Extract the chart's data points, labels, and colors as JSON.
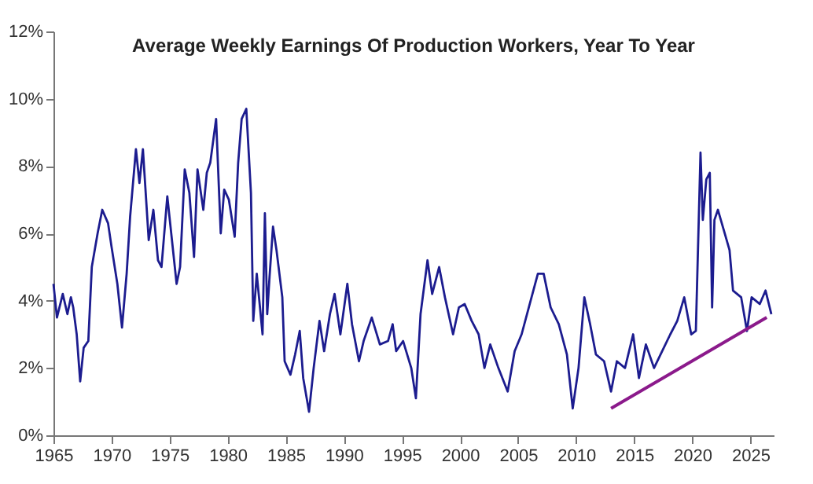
{
  "chart_data": {
    "type": "line",
    "title": "Average Weekly Earnings Of Production Workers, Year To Year",
    "xlim": [
      1965,
      2027
    ],
    "xticks": [
      1965,
      1970,
      1975,
      1980,
      1985,
      1990,
      1995,
      2000,
      2005,
      2010,
      2015,
      2020,
      2025
    ],
    "ylim": [
      0,
      12
    ],
    "yticks": [
      {
        "value": 0,
        "label": "0%"
      },
      {
        "value": 2,
        "label": "2%"
      },
      {
        "value": 4,
        "label": "4%"
      },
      {
        "value": 6,
        "label": "6%"
      },
      {
        "value": 8,
        "label": "8%"
      },
      {
        "value": 10,
        "label": "10%"
      },
      {
        "value": 12,
        "label": "12%"
      }
    ],
    "grid": false,
    "series": [
      {
        "color": "#1c1c8f",
        "x": [
          1965.0,
          1965.3,
          1965.8,
          1966.2,
          1966.5,
          1966.7,
          1967.0,
          1967.3,
          1967.6,
          1968.0,
          1968.3,
          1968.8,
          1969.2,
          1969.7,
          1970.0,
          1970.5,
          1970.9,
          1971.3,
          1971.6,
          1972.1,
          1972.4,
          1972.7,
          1973.2,
          1973.6,
          1974.0,
          1974.3,
          1974.8,
          1975.2,
          1975.6,
          1975.9,
          1976.3,
          1976.7,
          1977.1,
          1977.4,
          1977.9,
          1978.2,
          1978.5,
          1979.0,
          1979.4,
          1979.7,
          1980.1,
          1980.6,
          1980.9,
          1981.2,
          1981.6,
          1982.0,
          1982.2,
          1982.5,
          1983.0,
          1983.2,
          1983.4,
          1983.6,
          1983.9,
          1984.2,
          1984.7,
          1984.9,
          1985.4,
          1985.8,
          1986.2,
          1986.5,
          1987.0,
          1987.4,
          1987.9,
          1988.3,
          1988.8,
          1989.2,
          1989.7,
          1990.3,
          1990.7,
          1991.3,
          1991.7,
          1992.4,
          1993.1,
          1993.8,
          1994.2,
          1994.5,
          1995.1,
          1995.8,
          1996.2,
          1996.6,
          1997.2,
          1997.6,
          1998.2,
          1998.7,
          1999.4,
          1999.9,
          2000.4,
          2001.0,
          2001.6,
          2002.1,
          2002.6,
          2003.3,
          2004.1,
          2004.7,
          2005.3,
          2006.0,
          2006.7,
          2007.2,
          2007.8,
          2008.5,
          2009.2,
          2009.7,
          2010.2,
          2010.7,
          2011.2,
          2011.7,
          2012.4,
          2013.0,
          2013.5,
          2014.2,
          2014.9,
          2015.4,
          2016.0,
          2016.7,
          2017.4,
          2018.1,
          2018.7,
          2019.3,
          2019.9,
          2020.3,
          2020.7,
          2020.9,
          2021.2,
          2021.5,
          2021.7,
          2021.9,
          2022.2,
          2022.7,
          2023.2,
          2023.5,
          2024.2,
          2024.7,
          2025.1,
          2025.8,
          2026.3,
          2026.8
        ],
        "values": [
          4.5,
          3.5,
          4.2,
          3.6,
          4.1,
          3.8,
          3.0,
          1.6,
          2.6,
          2.8,
          5.0,
          6.0,
          6.7,
          6.3,
          5.6,
          4.5,
          3.2,
          4.8,
          6.5,
          8.5,
          7.5,
          8.5,
          5.8,
          6.7,
          5.2,
          5.0,
          7.1,
          5.8,
          4.5,
          5.0,
          7.9,
          7.2,
          5.3,
          7.9,
          6.7,
          7.8,
          8.1,
          9.4,
          6.0,
          7.3,
          7.0,
          5.9,
          8.1,
          9.4,
          9.7,
          7.2,
          3.4,
          4.8,
          3.0,
          6.6,
          3.6,
          4.7,
          6.2,
          5.5,
          4.1,
          2.2,
          1.8,
          2.4,
          3.1,
          1.7,
          0.7,
          2.0,
          3.4,
          2.5,
          3.6,
          4.2,
          3.0,
          4.5,
          3.3,
          2.2,
          2.8,
          3.5,
          2.7,
          2.8,
          3.3,
          2.5,
          2.8,
          2.0,
          1.1,
          3.6,
          5.2,
          4.2,
          5.0,
          4.1,
          3.0,
          3.8,
          3.9,
          3.4,
          3.0,
          2.0,
          2.7,
          2.0,
          1.3,
          2.5,
          3.0,
          3.9,
          4.8,
          4.8,
          3.8,
          3.3,
          2.4,
          0.8,
          2.0,
          4.1,
          3.3,
          2.4,
          2.2,
          1.3,
          2.2,
          2.0,
          3.0,
          1.7,
          2.7,
          2.0,
          2.5,
          3.0,
          3.4,
          4.1,
          3.0,
          3.1,
          8.4,
          6.4,
          7.6,
          7.8,
          3.8,
          6.4,
          6.7,
          6.1,
          5.5,
          4.3,
          4.1,
          3.1,
          4.1,
          3.9,
          4.3,
          3.6
        ]
      },
      {
        "type": "line",
        "color": "#8b1a8b",
        "x": [
          2013.0,
          2026.4
        ],
        "values": [
          0.8,
          3.5
        ]
      }
    ]
  }
}
